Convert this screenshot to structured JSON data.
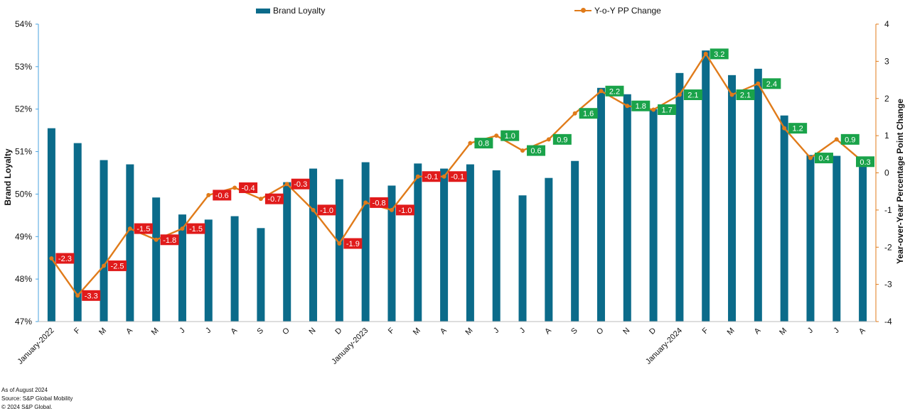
{
  "legend": {
    "bar_label": "Brand Loyalty",
    "line_label": "Y-o-Y PP Change"
  },
  "footnotes": {
    "line1": "As of August 2024",
    "line2": "Source: S&P Global Mobility",
    "line3": "© 2024 S&P Global."
  },
  "colors": {
    "bar": "#0b6b8a",
    "line": "#e07b1a",
    "positive_label": "#1aa34a",
    "negative_label": "#e01b1b",
    "left_axis": "#4aa3df",
    "right_axis": "#e07b1a"
  },
  "chart_data": {
    "type": "bar",
    "combo": "bar+line",
    "categories": [
      "January-2022",
      "F",
      "M",
      "A",
      "M",
      "J",
      "J",
      "A",
      "S",
      "O",
      "N",
      "D",
      "January-2023",
      "F",
      "M",
      "A",
      "M",
      "J",
      "J",
      "A",
      "S",
      "O",
      "N",
      "D",
      "January-2024",
      "F",
      "M",
      "A",
      "M",
      "J",
      "J",
      "A"
    ],
    "series": [
      {
        "name": "Brand Loyalty",
        "type": "bar",
        "axis": "left",
        "values": [
          51.55,
          51.2,
          50.8,
          50.7,
          49.92,
          49.52,
          49.4,
          49.48,
          49.2,
          50.28,
          50.6,
          50.35,
          50.75,
          50.2,
          50.72,
          50.6,
          50.7,
          50.56,
          49.97,
          50.38,
          50.78,
          52.5,
          52.35,
          52.0,
          52.85,
          53.38,
          52.8,
          52.95,
          51.85,
          50.92,
          50.9,
          50.7
        ]
      },
      {
        "name": "Y-o-Y PP Change",
        "type": "line",
        "axis": "right",
        "values": [
          -2.3,
          -3.3,
          -2.5,
          -1.5,
          -1.8,
          -1.5,
          -0.6,
          -0.4,
          -0.7,
          -0.3,
          -1.0,
          -1.9,
          -0.8,
          -1.0,
          -0.1,
          -0.1,
          0.8,
          1.0,
          0.6,
          0.9,
          1.6,
          2.2,
          1.8,
          1.7,
          2.1,
          3.2,
          2.1,
          2.4,
          1.2,
          0.4,
          0.9,
          0.3
        ]
      }
    ],
    "data_labels": [
      "-2.3",
      "-3.3",
      "-2.5",
      "-1.5",
      "-1.8",
      "-1.5",
      "-0.6",
      "-0.4",
      "-0.7",
      "-0.3",
      "-1.0",
      "-1.9",
      "-0.8",
      "-1.0",
      "-0.1",
      "-0.1",
      "0.8",
      "1.0",
      "0.6",
      "0.9",
      "1.6",
      "2.2",
      "1.8",
      "1.7",
      "2.1",
      "3.2",
      "2.1",
      "2.4",
      "1.2",
      "0.4",
      "0.9",
      "0.3"
    ],
    "ylabel": "Brand Loyalty",
    "y2label": "Year-over-Year Percentage Point Change",
    "ylim": [
      47,
      54
    ],
    "y2lim": [
      -4,
      4
    ],
    "yticks": [
      "47%",
      "48%",
      "49%",
      "50%",
      "51%",
      "52%",
      "53%",
      "54%"
    ],
    "y2ticks": [
      "-4",
      "-3",
      "-2",
      "-1",
      "0",
      "1",
      "2",
      "3",
      "4"
    ],
    "grid": false,
    "legend_position": "top"
  }
}
